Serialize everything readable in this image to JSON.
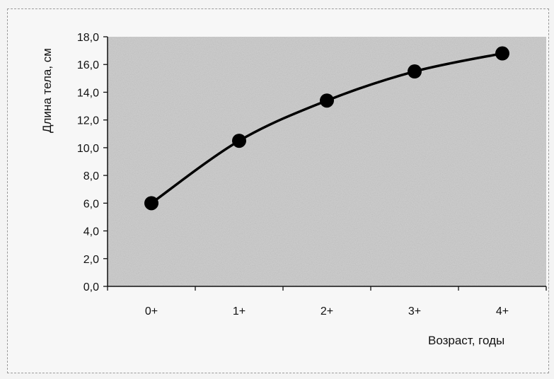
{
  "chart_data": {
    "type": "line",
    "title": "",
    "xlabel": "Возраст, годы",
    "ylabel": "Длина тела, см",
    "categories": [
      "0+",
      "1+",
      "2+",
      "3+",
      "4+"
    ],
    "series": [
      {
        "values": [
          6.0,
          10.5,
          13.4,
          15.5,
          16.8
        ]
      }
    ],
    "ylim": [
      0,
      18
    ],
    "yticks": [
      "0,0",
      "2,0",
      "4,0",
      "6,0",
      "8,0",
      "10,0",
      "12,0",
      "14,0",
      "16,0",
      "18,0"
    ],
    "ytick_values": [
      0,
      2,
      4,
      6,
      8,
      10,
      12,
      14,
      16,
      18
    ],
    "grid": false,
    "legend": "none",
    "colors": {
      "plot_background": "#cfcfcf",
      "line": "#000000",
      "marker": "#000000"
    }
  }
}
